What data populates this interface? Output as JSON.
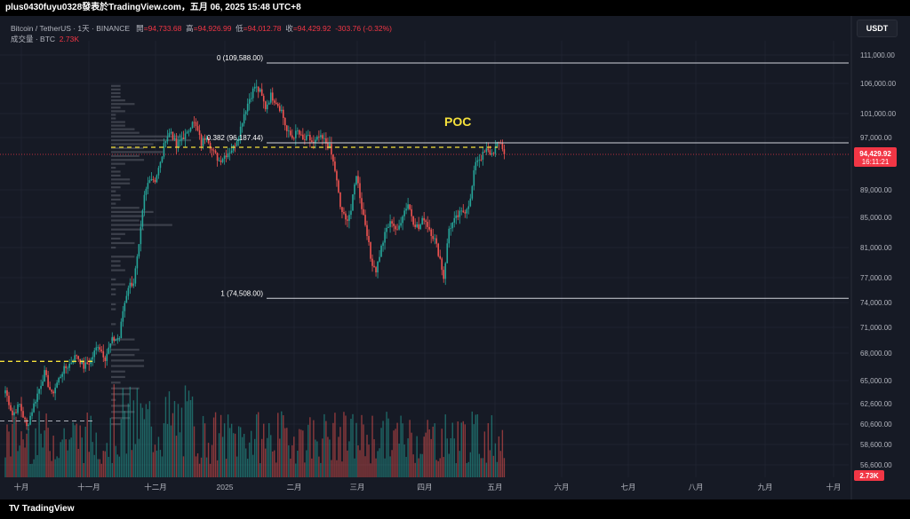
{
  "header": {
    "caption": "plus0430fuyu0328發表於TradingView.com，五月 06, 2025 15:48 UTC+8"
  },
  "legend": {
    "symbol": "Bitcoin / TetherUS · 1天 · BINANCE",
    "open_label": "開",
    "open": "=94,733.68",
    "high_label": "高",
    "high": "=94,926.99",
    "low_label": "低",
    "low": "=94,012.78",
    "close_label": "收",
    "close": "=94,429.92",
    "change": "-303.76 (-0.32%)",
    "volume_label": "成交量 · BTC",
    "volume": "2.73K"
  },
  "currency_button": "USDT",
  "footer": {
    "brand": "TradingView",
    "logo": "TV"
  },
  "colors": {
    "up": "#26a69a",
    "down": "#ef5350",
    "background": "#161a25",
    "fib_line": "#d1d4dc",
    "poc_line": "#f5e13b",
    "price_line": "#f23645"
  },
  "chart_data": {
    "type": "candlestick",
    "y_ticks": [
      "111,000.00",
      "106,000.00",
      "101,000.00",
      "97,000.00",
      "89,000.00",
      "85,000.00",
      "81,000.00",
      "77,000.00",
      "74,000.00",
      "71,000.00",
      "68,000.00",
      "65,000.00",
      "62,600.00",
      "60,600.00",
      "58,600.00",
      "56,600.00"
    ],
    "x_ticks": [
      "十月",
      "十一月",
      "十二月",
      "2025",
      "二月",
      "三月",
      "四月",
      "五月",
      "六月",
      "七月",
      "八月",
      "九月",
      "十月"
    ],
    "fib_levels": [
      {
        "label": "0 (109,588.00)",
        "value": 109588
      },
      {
        "label": "0.382 (96,187.44)",
        "value": 96187.44
      },
      {
        "label": "1 (74,508.00)",
        "value": 74508
      }
    ],
    "poc_label": "POC",
    "last_price": {
      "value": "94,429.92",
      "countdown": "16:11:21"
    },
    "last_volume": "2.73K",
    "anchor_closes": [
      [
        0,
        64000
      ],
      [
        4,
        61500
      ],
      [
        8,
        62500
      ],
      [
        12,
        60300
      ],
      [
        16,
        62500
      ],
      [
        22,
        65800
      ],
      [
        26,
        63500
      ],
      [
        32,
        66000
      ],
      [
        36,
        66800
      ],
      [
        40,
        67800
      ],
      [
        44,
        66500
      ],
      [
        48,
        67200
      ],
      [
        52,
        69000
      ],
      [
        56,
        67500
      ],
      [
        60,
        69500
      ],
      [
        64,
        69800
      ],
      [
        66,
        73000
      ],
      [
        69,
        76000
      ],
      [
        72,
        76500
      ],
      [
        75,
        81000
      ],
      [
        78,
        88000
      ],
      [
        81,
        91000
      ],
      [
        84,
        90500
      ],
      [
        87,
        93000
      ],
      [
        90,
        97000
      ],
      [
        93,
        98000
      ],
      [
        96,
        95500
      ],
      [
        99,
        97000
      ],
      [
        102,
        97500
      ],
      [
        105,
        100000
      ],
      [
        108,
        98000
      ],
      [
        110,
        96000
      ],
      [
        113,
        97500
      ],
      [
        116,
        95000
      ],
      [
        120,
        93500
      ],
      [
        124,
        94500
      ],
      [
        128,
        95500
      ],
      [
        131,
        97500
      ],
      [
        134,
        101000
      ],
      [
        137,
        103500
      ],
      [
        140,
        105500
      ],
      [
        143,
        104500
      ],
      [
        146,
        102000
      ],
      [
        149,
        104000
      ],
      [
        152,
        103000
      ],
      [
        155,
        101500
      ],
      [
        158,
        98000
      ],
      [
        161,
        97000
      ],
      [
        164,
        98000
      ],
      [
        167,
        96500
      ],
      [
        170,
        97000
      ],
      [
        173,
        96000
      ],
      [
        176,
        97000
      ],
      [
        179,
        96500
      ],
      [
        182,
        95500
      ],
      [
        185,
        92000
      ],
      [
        188,
        86500
      ],
      [
        191,
        84500
      ],
      [
        194,
        86000
      ],
      [
        197,
        91500
      ],
      [
        200,
        86500
      ],
      [
        203,
        83000
      ],
      [
        205,
        79500
      ],
      [
        208,
        78000
      ],
      [
        211,
        81000
      ],
      [
        214,
        83500
      ],
      [
        217,
        84500
      ],
      [
        220,
        83000
      ],
      [
        223,
        85500
      ],
      [
        226,
        87000
      ],
      [
        229,
        84500
      ],
      [
        232,
        83500
      ],
      [
        235,
        85000
      ],
      [
        238,
        83500
      ],
      [
        241,
        82000
      ],
      [
        244,
        79500
      ],
      [
        246,
        77000
      ],
      [
        249,
        83500
      ],
      [
        252,
        84500
      ],
      [
        255,
        85500
      ],
      [
        258,
        86000
      ],
      [
        261,
        87500
      ],
      [
        264,
        93500
      ],
      [
        267,
        94000
      ],
      [
        270,
        95000
      ],
      [
        273,
        94500
      ],
      [
        276,
        95800
      ],
      [
        278,
        96400
      ],
      [
        280,
        94430
      ]
    ]
  }
}
